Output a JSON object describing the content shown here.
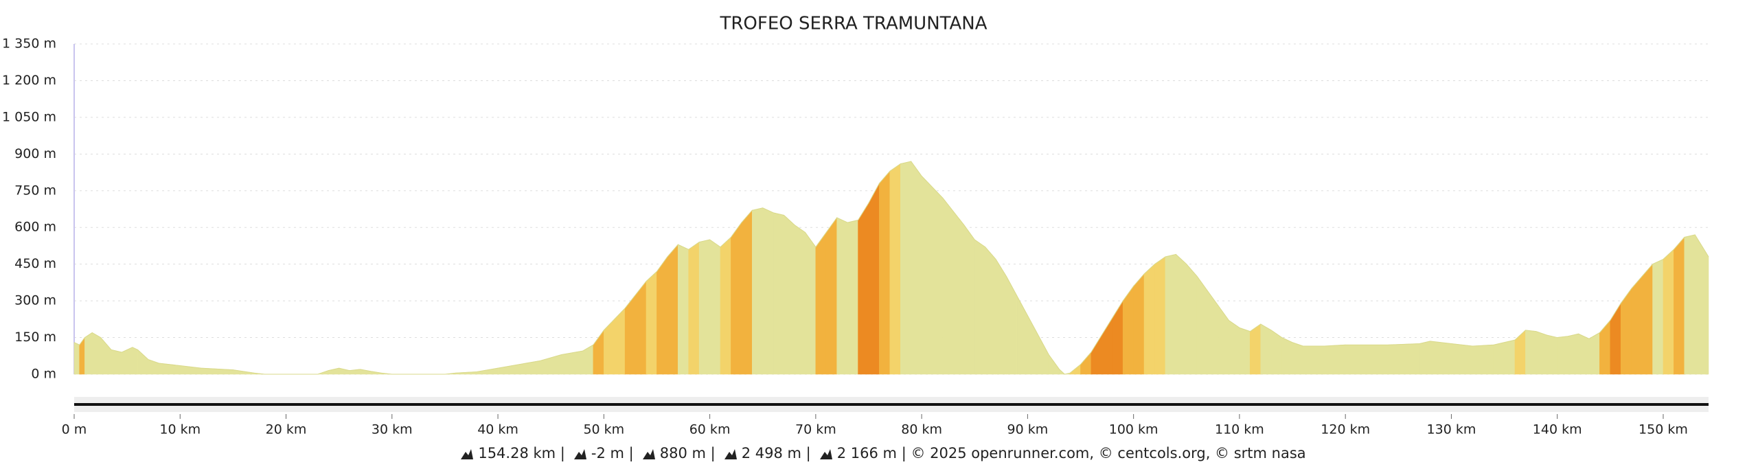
{
  "chart_data": {
    "type": "area",
    "title": "TROFEO SERRA TRAMUNTANA",
    "xlim": [
      0,
      154.28
    ],
    "ylim": [
      0,
      1350
    ],
    "yticks": [
      {
        "value": 0,
        "label": "0 m"
      },
      {
        "value": 150,
        "label": "150 m"
      },
      {
        "value": 300,
        "label": "300 m"
      },
      {
        "value": 450,
        "label": "450 m"
      },
      {
        "value": 600,
        "label": "600 m"
      },
      {
        "value": 750,
        "label": "750 m"
      },
      {
        "value": 900,
        "label": "900 m"
      },
      {
        "value": 1050,
        "label": "1 050 m"
      },
      {
        "value": 1200,
        "label": "1 200 m"
      },
      {
        "value": 1350,
        "label": "1 350 m"
      }
    ],
    "xticks": [
      {
        "value": 0,
        "label": "0 m"
      },
      {
        "value": 10,
        "label": "10 km"
      },
      {
        "value": 20,
        "label": "20 km"
      },
      {
        "value": 30,
        "label": "30 km"
      },
      {
        "value": 40,
        "label": "40 km"
      },
      {
        "value": 50,
        "label": "50 km"
      },
      {
        "value": 60,
        "label": "60 km"
      },
      {
        "value": 70,
        "label": "70 km"
      },
      {
        "value": 80,
        "label": "80 km"
      },
      {
        "value": 90,
        "label": "90 km"
      },
      {
        "value": 100,
        "label": "100 km"
      },
      {
        "value": 110,
        "label": "110 km"
      },
      {
        "value": 120,
        "label": "120 km"
      },
      {
        "value": 130,
        "label": "130 km"
      },
      {
        "value": 140,
        "label": "140 km"
      },
      {
        "value": 150,
        "label": "150 km"
      }
    ],
    "grid": true,
    "colors": [
      "#e3e39a",
      "#f3d36a",
      "#f2b23e",
      "#ec8a22",
      "#d9481c"
    ],
    "series": [
      {
        "name": "elevation",
        "color": "#e3e39a",
        "x": [
          0,
          0.5,
          1,
          1.7,
          2.5,
          3.5,
          4.5,
          5.5,
          6,
          7,
          8,
          10,
          12,
          15,
          17,
          18,
          20,
          23,
          24,
          25,
          26,
          27,
          28,
          29,
          30,
          35,
          36,
          38,
          40,
          42,
          44,
          46,
          48,
          49,
          50,
          52,
          54,
          55,
          56,
          57,
          58,
          59,
          60,
          61,
          62,
          63,
          64,
          65,
          66,
          67,
          68,
          69,
          70,
          71,
          72,
          73,
          74,
          75,
          76,
          77,
          78,
          79,
          80,
          82,
          84,
          85,
          86,
          87,
          88,
          89,
          90,
          91,
          92,
          93,
          93.5,
          94,
          95,
          96,
          97,
          98,
          99,
          100,
          101,
          102,
          103,
          104,
          105,
          106,
          107,
          108,
          109,
          110,
          111,
          112,
          113,
          114,
          115,
          116,
          118,
          120,
          124,
          127,
          128,
          130,
          132,
          134,
          136,
          137,
          138,
          139,
          140,
          141,
          142,
          143,
          144,
          145,
          146,
          147,
          148,
          149,
          150,
          151,
          152,
          153,
          154,
          154.28
        ],
        "values": [
          130,
          120,
          150,
          170,
          150,
          100,
          90,
          110,
          100,
          60,
          45,
          35,
          25,
          18,
          5,
          0,
          0,
          0,
          15,
          25,
          15,
          20,
          12,
          5,
          0,
          0,
          5,
          10,
          25,
          40,
          55,
          80,
          95,
          120,
          180,
          270,
          380,
          420,
          480,
          530,
          510,
          540,
          550,
          520,
          560,
          620,
          670,
          680,
          660,
          650,
          610,
          580,
          520,
          580,
          640,
          620,
          630,
          700,
          780,
          830,
          860,
          870,
          810,
          720,
          610,
          550,
          520,
          470,
          400,
          320,
          240,
          160,
          80,
          20,
          0,
          5,
          40,
          90,
          160,
          230,
          300,
          360,
          410,
          450,
          480,
          490,
          450,
          400,
          340,
          280,
          220,
          190,
          175,
          205,
          180,
          150,
          130,
          115,
          115,
          120,
          120,
          125,
          135,
          125,
          115,
          120,
          140,
          180,
          175,
          160,
          150,
          155,
          165,
          145,
          170,
          220,
          290,
          350,
          400,
          450,
          470,
          510,
          560,
          570,
          500,
          480
        ]
      }
    ],
    "footer": {
      "stats": [
        "154.28 km",
        "-2 m",
        "880 m",
        "2 498 m",
        "2 166 m"
      ],
      "separator": "|",
      "credit": "© 2025 openrunner.com, © centcols.org, © srtm nasa"
    }
  }
}
